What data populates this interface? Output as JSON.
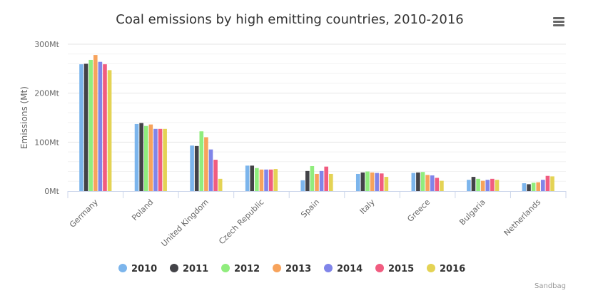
{
  "chart_data": {
    "type": "bar",
    "title": "Coal emissions by high emitting countries, 2010-2016",
    "xlabel": "",
    "ylabel": "Emissions (Mt)",
    "ylim": [
      0,
      300
    ],
    "yticks": [
      "0Mt",
      "100Mt",
      "200Mt",
      "300Mt"
    ],
    "ytick_values": [
      0,
      100,
      200,
      300
    ],
    "grid": true,
    "legend_position": "bottom",
    "credit": "Sandbag",
    "categories": [
      "Germany",
      "Poland",
      "United Kingdom",
      "Czech Republic",
      "Spain",
      "Italy",
      "Greece",
      "Bulgaria",
      "Netherlands"
    ],
    "series": [
      {
        "name": "2010",
        "color": "#7cb5ec",
        "values": [
          259,
          137,
          93,
          52,
          22,
          35,
          37,
          23,
          16
        ]
      },
      {
        "name": "2011",
        "color": "#434348",
        "values": [
          260,
          139,
          92,
          52,
          41,
          38,
          38,
          29,
          14
        ]
      },
      {
        "name": "2012",
        "color": "#90ed7d",
        "values": [
          268,
          133,
          122,
          47,
          51,
          40,
          39,
          25,
          17
        ]
      },
      {
        "name": "2013",
        "color": "#f7a35c",
        "values": [
          278,
          136,
          110,
          44,
          35,
          38,
          33,
          21,
          18
        ]
      },
      {
        "name": "2014",
        "color": "#8085e9",
        "values": [
          264,
          127,
          85,
          44,
          41,
          37,
          32,
          23,
          23
        ]
      },
      {
        "name": "2015",
        "color": "#f15c80",
        "values": [
          259,
          127,
          64,
          44,
          50,
          36,
          27,
          25,
          31
        ]
      },
      {
        "name": "2016",
        "color": "#e4d354",
        "values": [
          247,
          127,
          25,
          45,
          35,
          29,
          21,
          23,
          30
        ]
      }
    ]
  },
  "menu_icon": "hamburger-menu-icon"
}
